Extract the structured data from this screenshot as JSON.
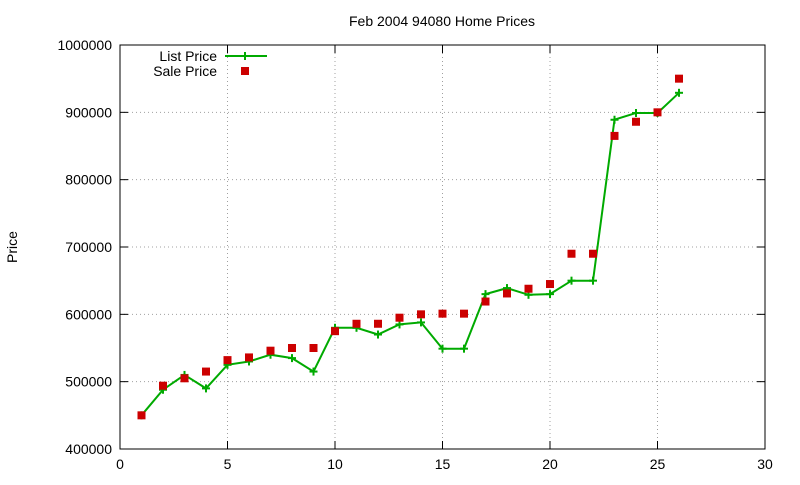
{
  "chart_data": {
    "type": "scatter",
    "title": "Feb 2004 94080 Home Prices",
    "xlabel": "",
    "ylabel": "Price",
    "xlim": [
      0,
      30
    ],
    "ylim": [
      400000,
      1000000
    ],
    "xticks": [
      0,
      5,
      10,
      15,
      20,
      25,
      30
    ],
    "yticks": [
      400000,
      500000,
      600000,
      700000,
      800000,
      900000,
      1000000
    ],
    "grid": true,
    "legend": "top-left",
    "series": [
      {
        "name": "List Price",
        "style": "line-with-plus-markers",
        "color": "#00aa00",
        "x": [
          1,
          2,
          3,
          4,
          5,
          6,
          7,
          8,
          9,
          10,
          11,
          12,
          13,
          14,
          15,
          16,
          17,
          18,
          19,
          20,
          21,
          22,
          23,
          24,
          25,
          26
        ],
        "y": [
          450000,
          488000,
          510000,
          490000,
          525000,
          530000,
          540000,
          535000,
          515000,
          580000,
          580000,
          570000,
          585000,
          588000,
          549000,
          549000,
          630000,
          639000,
          629000,
          630000,
          650000,
          650000,
          889000,
          899000,
          899000,
          929000
        ]
      },
      {
        "name": "Sale Price",
        "style": "square-markers",
        "color": "#cc0000",
        "x": [
          1,
          2,
          3,
          4,
          5,
          6,
          7,
          8,
          9,
          10,
          11,
          12,
          13,
          14,
          15,
          16,
          17,
          18,
          19,
          20,
          21,
          22,
          23,
          24,
          25,
          26
        ],
        "y": [
          450000,
          494000,
          505000,
          515000,
          532000,
          536000,
          546000,
          550000,
          550000,
          575000,
          586000,
          586000,
          595000,
          600000,
          601000,
          601000,
          619000,
          631000,
          638000,
          645000,
          690000,
          690000,
          865000,
          886000,
          900000,
          950000
        ]
      }
    ]
  }
}
